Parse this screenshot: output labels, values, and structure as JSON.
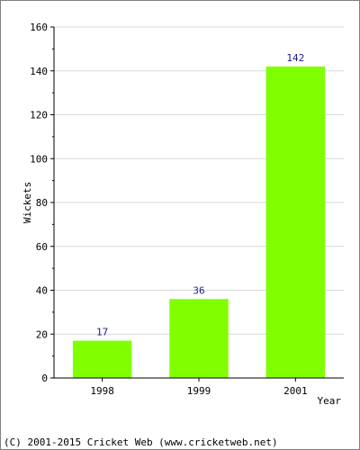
{
  "chart_data": {
    "type": "bar",
    "categories": [
      "1998",
      "1999",
      "2001"
    ],
    "values": [
      17,
      36,
      142
    ],
    "xlabel": "Year",
    "ylabel": "Wickets",
    "ylim": [
      0,
      160
    ],
    "yticks": [
      0,
      20,
      40,
      60,
      80,
      100,
      120,
      140,
      160
    ],
    "grid": true,
    "bar_color": "#80ff00",
    "data_labels": [
      "17",
      "36",
      "142"
    ],
    "tick_labels": [
      "0",
      "20",
      "40",
      "60",
      "80",
      "100",
      "120",
      "140",
      "160"
    ]
  },
  "footer": {
    "copyright": "(C) 2001-2015 Cricket Web (www.cricketweb.net)"
  }
}
